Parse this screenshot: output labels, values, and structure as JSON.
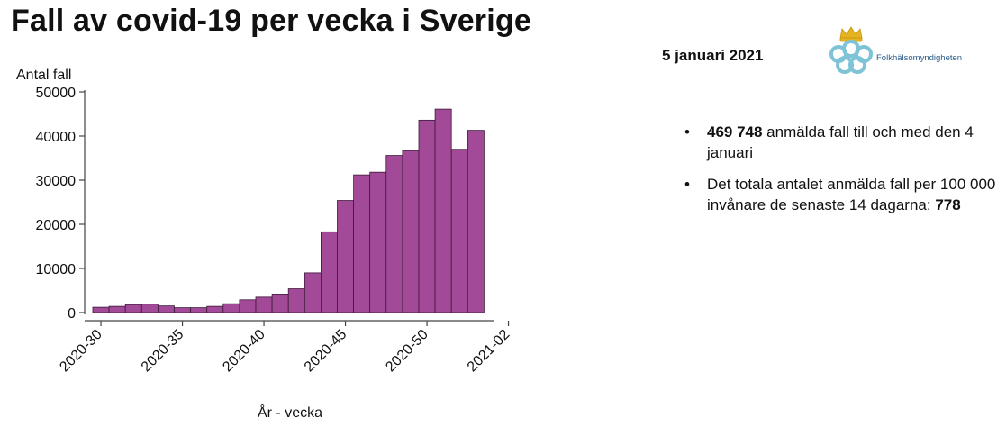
{
  "title": "Fall av covid-19 per vecka i Sverige",
  "date": "5 januari 2021",
  "logo": {
    "text": "Folkhälsomyndigheten",
    "icon": "crown-rings-logo-icon"
  },
  "bullets": [
    {
      "bold": "469 748",
      "text": " anmälda fall till och med den 4 januari"
    },
    {
      "text": "Det totala antalet anmälda fall per 100 000 invånare de senaste 14 dagarna: ",
      "bold_after": "778"
    }
  ],
  "bullet_symbol": "•",
  "colors": {
    "bar_fill": "#a24a97",
    "bar_stroke": "#3a1a36",
    "axis": "#444444"
  },
  "chart_data": {
    "type": "bar",
    "ylabel": "Antal fall",
    "xlabel": "År - vecka",
    "ylim": [
      0,
      50000
    ],
    "yticks": [
      0,
      10000,
      20000,
      30000,
      40000,
      50000
    ],
    "xticks": [
      "2020-30",
      "2020-35",
      "2020-40",
      "2020-45",
      "2020-50",
      "2021-02"
    ],
    "grid": false,
    "categories": [
      "2020-30",
      "2020-31",
      "2020-32",
      "2020-33",
      "2020-34",
      "2020-35",
      "2020-36",
      "2020-37",
      "2020-38",
      "2020-39",
      "2020-40",
      "2020-41",
      "2020-42",
      "2020-43",
      "2020-44",
      "2020-45",
      "2020-46",
      "2020-47",
      "2020-48",
      "2020-49",
      "2020-50",
      "2020-51",
      "2020-52",
      "2020-53"
    ],
    "values": [
      1200,
      1400,
      1800,
      1900,
      1500,
      1100,
      1100,
      1400,
      2000,
      2900,
      3500,
      4200,
      5400,
      9000,
      18300,
      25400,
      31200,
      31800,
      35600,
      36700,
      43600,
      46100,
      37000,
      41300
    ]
  }
}
